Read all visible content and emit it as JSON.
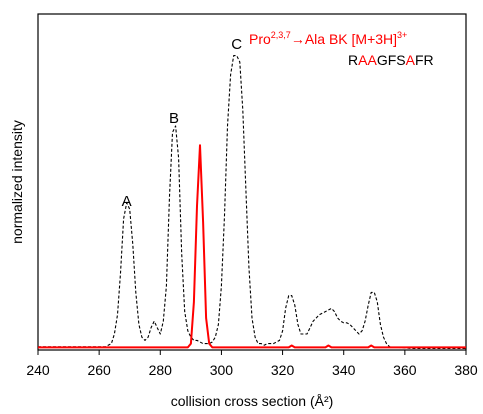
{
  "chart_data": {
    "type": "line",
    "title": "",
    "xlabel": "collision cross section (Å²)",
    "ylabel": "normalized intensity",
    "xlim": [
      240,
      380
    ],
    "ylim": [
      0,
      1.05
    ],
    "xticks": [
      240,
      260,
      280,
      300,
      320,
      340,
      360,
      380
    ],
    "yticks_shown": false,
    "grid": false,
    "legend": "none",
    "annotations": {
      "peak_labels": [
        {
          "text": "A",
          "x": 269,
          "y": 0.45
        },
        {
          "text": "B",
          "x": 284.5,
          "y": 0.71
        },
        {
          "text": "C",
          "x": 305,
          "y": 0.94
        }
      ],
      "ion_label": {
        "base": "Pro",
        "superscript": "2,3,7",
        "rest": "→Ala BK [M+3H]",
        "charge": "3+",
        "color": "#ff0000"
      },
      "sequence": [
        {
          "char": "R",
          "color": "#000000"
        },
        {
          "char": "A",
          "color": "#ff0000"
        },
        {
          "char": "A",
          "color": "#ff0000"
        },
        {
          "char": "G",
          "color": "#000000"
        },
        {
          "char": "F",
          "color": "#000000"
        },
        {
          "char": "S",
          "color": "#000000"
        },
        {
          "char": "A",
          "color": "#ff0000"
        },
        {
          "char": "F",
          "color": "#000000"
        },
        {
          "char": "R",
          "color": "#000000"
        }
      ]
    },
    "series": [
      {
        "style": "dashed",
        "color": "#000000",
        "points": [
          [
            240,
            0.01
          ],
          [
            262,
            0.01
          ],
          [
            264,
            0.02
          ],
          [
            265,
            0.05
          ],
          [
            266,
            0.11
          ],
          [
            267,
            0.24
          ],
          [
            268,
            0.41
          ],
          [
            269,
            0.46
          ],
          [
            270,
            0.44
          ],
          [
            271,
            0.33
          ],
          [
            272,
            0.18
          ],
          [
            273,
            0.08
          ],
          [
            274,
            0.04
          ],
          [
            275,
            0.03
          ],
          [
            276,
            0.04
          ],
          [
            277,
            0.07
          ],
          [
            278,
            0.09
          ],
          [
            279,
            0.07
          ],
          [
            280,
            0.05
          ],
          [
            281,
            0.09
          ],
          [
            282,
            0.2
          ],
          [
            283,
            0.48
          ],
          [
            284,
            0.68
          ],
          [
            285,
            0.7
          ],
          [
            286,
            0.6
          ],
          [
            287,
            0.3
          ],
          [
            288,
            0.12
          ],
          [
            289,
            0.06
          ],
          [
            290,
            0.04
          ],
          [
            291,
            0.03
          ],
          [
            292,
            0.03
          ],
          [
            293,
            0.025
          ],
          [
            294,
            0.02
          ],
          [
            295,
            0.02
          ],
          [
            296,
            0.02
          ],
          [
            297,
            0.025
          ],
          [
            298,
            0.04
          ],
          [
            299,
            0.08
          ],
          [
            300,
            0.2
          ],
          [
            301,
            0.42
          ],
          [
            302,
            0.7
          ],
          [
            303,
            0.86
          ],
          [
            304,
            0.92
          ],
          [
            305,
            0.92
          ],
          [
            306,
            0.9
          ],
          [
            307,
            0.75
          ],
          [
            308,
            0.5
          ],
          [
            309,
            0.26
          ],
          [
            310,
            0.1
          ],
          [
            311,
            0.04
          ],
          [
            312,
            0.02
          ],
          [
            313,
            0.02
          ],
          [
            314,
            0.015
          ],
          [
            315,
            0.02
          ],
          [
            316,
            0.02
          ],
          [
            317,
            0.02
          ],
          [
            318,
            0.025
          ],
          [
            319,
            0.03
          ],
          [
            320,
            0.06
          ],
          [
            321,
            0.13
          ],
          [
            322,
            0.17
          ],
          [
            323,
            0.17
          ],
          [
            324,
            0.14
          ],
          [
            325,
            0.08
          ],
          [
            326,
            0.05
          ],
          [
            327,
            0.05
          ],
          [
            328,
            0.05
          ],
          [
            329,
            0.07
          ],
          [
            330,
            0.09
          ],
          [
            331,
            0.1
          ],
          [
            332,
            0.11
          ],
          [
            333,
            0.115
          ],
          [
            334,
            0.12
          ],
          [
            335,
            0.125
          ],
          [
            336,
            0.13
          ],
          [
            337,
            0.12
          ],
          [
            338,
            0.1
          ],
          [
            339,
            0.09
          ],
          [
            340,
            0.085
          ],
          [
            341,
            0.085
          ],
          [
            342,
            0.08
          ],
          [
            343,
            0.07
          ],
          [
            344,
            0.06
          ],
          [
            345,
            0.05
          ],
          [
            346,
            0.06
          ],
          [
            347,
            0.09
          ],
          [
            348,
            0.14
          ],
          [
            349,
            0.18
          ],
          [
            350,
            0.18
          ],
          [
            351,
            0.15
          ],
          [
            352,
            0.08
          ],
          [
            353,
            0.04
          ],
          [
            354,
            0.02
          ],
          [
            355,
            0.01
          ],
          [
            356,
            0.008
          ],
          [
            358,
            0.008
          ],
          [
            362,
            0.005
          ],
          [
            380,
            0.005
          ]
        ]
      },
      {
        "style": "solid",
        "color": "#ff0000",
        "points": [
          [
            240,
            0.008
          ],
          [
            289,
            0.008
          ],
          [
            290,
            0.02
          ],
          [
            291,
            0.15
          ],
          [
            292,
            0.45
          ],
          [
            293,
            0.64
          ],
          [
            294,
            0.4
          ],
          [
            295,
            0.1
          ],
          [
            296,
            0.02
          ],
          [
            297,
            0.008
          ],
          [
            322,
            0.008
          ],
          [
            323,
            0.014
          ],
          [
            324,
            0.008
          ],
          [
            334,
            0.008
          ],
          [
            335,
            0.014
          ],
          [
            336,
            0.008
          ],
          [
            348,
            0.008
          ],
          [
            349,
            0.014
          ],
          [
            350,
            0.008
          ],
          [
            380,
            0.008
          ]
        ]
      }
    ]
  }
}
